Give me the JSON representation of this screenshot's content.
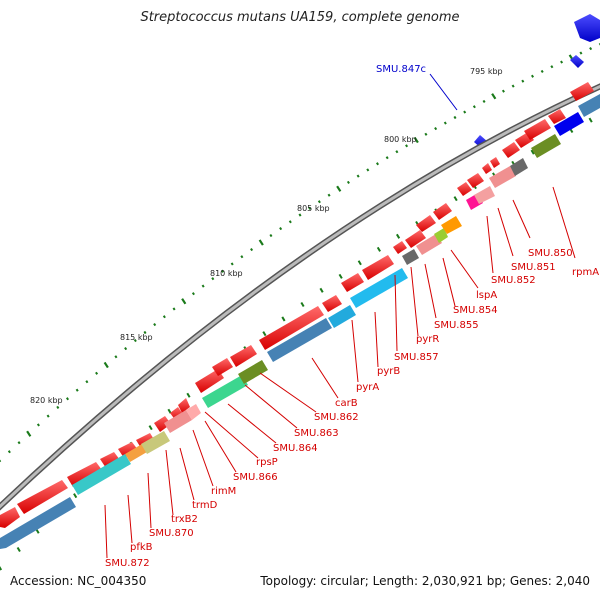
{
  "title": "Streptococcus mutans UA159, complete genome",
  "accession": "Accession: NC_004350",
  "summary": "Topology: circular; Length: 2,030,921 bp; Genes: 2,040",
  "scale_labels": [
    "795 kbp",
    "800 kbp",
    "805 kbp",
    "810 kbp",
    "815 kbp",
    "820 kbp"
  ],
  "blue_gene_label": "SMU.847c",
  "gene_labels": [
    "SMU.850",
    "rpmA",
    "SMU.851",
    "SMU.852",
    "lspA",
    "SMU.854",
    "SMU.855",
    "pyrR",
    "SMU.857",
    "pyrB",
    "pyrA",
    "carB",
    "SMU.862",
    "SMU.863",
    "SMU.864",
    "rpsP",
    "SMU.866",
    "rimM",
    "trmD",
    "trxB2",
    "SMU.870",
    "pfkB",
    "SMU.872"
  ],
  "colors": {
    "forward_gene": "#ff0000",
    "reverse_gene": "#0000ff",
    "backbone": "#8c8c8c",
    "tick": "#1a7a1a",
    "cog_blue": "#4682b4",
    "cog_cyan": "#22aadd",
    "cog_pink": "#f08080",
    "cog_olive": "#6b8e23",
    "cog_gray": "#696969",
    "label": "#d40000"
  }
}
